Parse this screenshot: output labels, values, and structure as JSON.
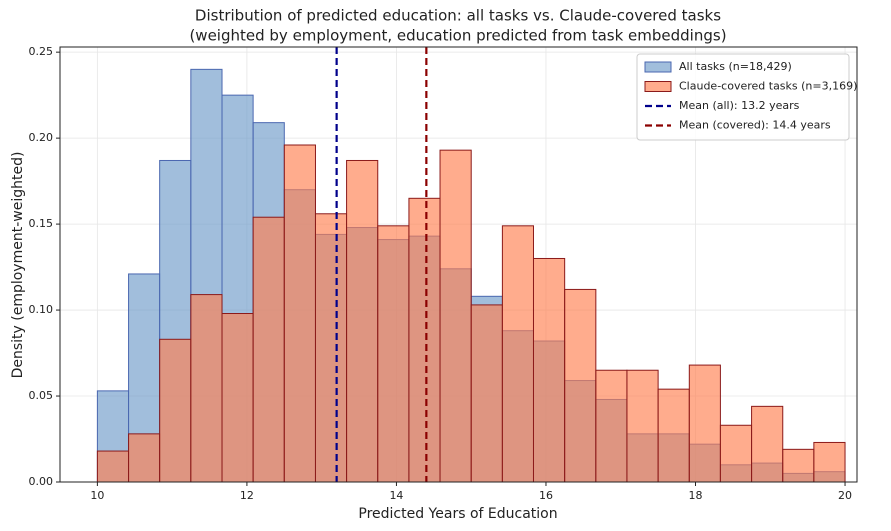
{
  "chart_data": {
    "type": "histogram",
    "title": "Distribution of predicted education: all tasks vs. Claude-covered tasks",
    "subtitle": "(weighted by employment, education predicted from task embeddings)",
    "x_label": "Predicted Years of Education",
    "y_label": "Density (employment-weighted)",
    "bins": [
      10,
      10.417,
      10.833,
      11.25,
      11.667,
      12.083,
      12.5,
      12.917,
      13.333,
      13.75,
      14.167,
      14.583,
      15,
      15.417,
      15.833,
      16.25,
      16.667,
      17.083,
      17.5,
      17.917,
      18.333,
      18.75,
      19.167,
      19.583,
      20
    ],
    "series": [
      {
        "name": "All tasks (n=18,429)",
        "color": "#6f9bc9",
        "edgecolor": "#4a67b0",
        "opacity": 0.65,
        "values": [
          0.053,
          0.121,
          0.187,
          0.24,
          0.225,
          0.209,
          0.17,
          0.144,
          0.148,
          0.141,
          0.143,
          0.124,
          0.108,
          0.088,
          0.082,
          0.059,
          0.048,
          0.028,
          0.028,
          0.022,
          0.01,
          0.011,
          0.005,
          0.006
        ]
      },
      {
        "name": "Claude-covered tasks (n=3,169)",
        "color": "#ff7f50",
        "edgecolor": "#8b1a1a",
        "opacity": 0.65,
        "values": [
          0.018,
          0.028,
          0.083,
          0.109,
          0.098,
          0.154,
          0.196,
          0.156,
          0.187,
          0.149,
          0.165,
          0.193,
          0.103,
          0.149,
          0.13,
          0.112,
          0.065,
          0.065,
          0.054,
          0.068,
          0.033,
          0.044,
          0.019,
          0.023
        ]
      }
    ],
    "vlines": [
      {
        "name": "Mean (all): 13.2 years",
        "value": 13.2,
        "color": "#00008b"
      },
      {
        "name": "Mean (covered): 14.4 years",
        "value": 14.4,
        "color": "#8b0000"
      }
    ],
    "xlim": [
      9.5,
      20.16
    ],
    "ylim": [
      0,
      0.253
    ],
    "xticks": [
      10,
      12,
      14,
      16,
      18,
      20
    ],
    "yticks": [
      {
        "value": 0,
        "label": "0.00"
      },
      {
        "value": 0.05,
        "label": "0.05"
      },
      {
        "value": 0.1,
        "label": "0.10"
      },
      {
        "value": 0.15,
        "label": "0.15"
      },
      {
        "value": 0.2,
        "label": "0.20"
      },
      {
        "value": 0.25,
        "label": "0.25"
      }
    ],
    "grid": true,
    "legend": "upper right"
  }
}
